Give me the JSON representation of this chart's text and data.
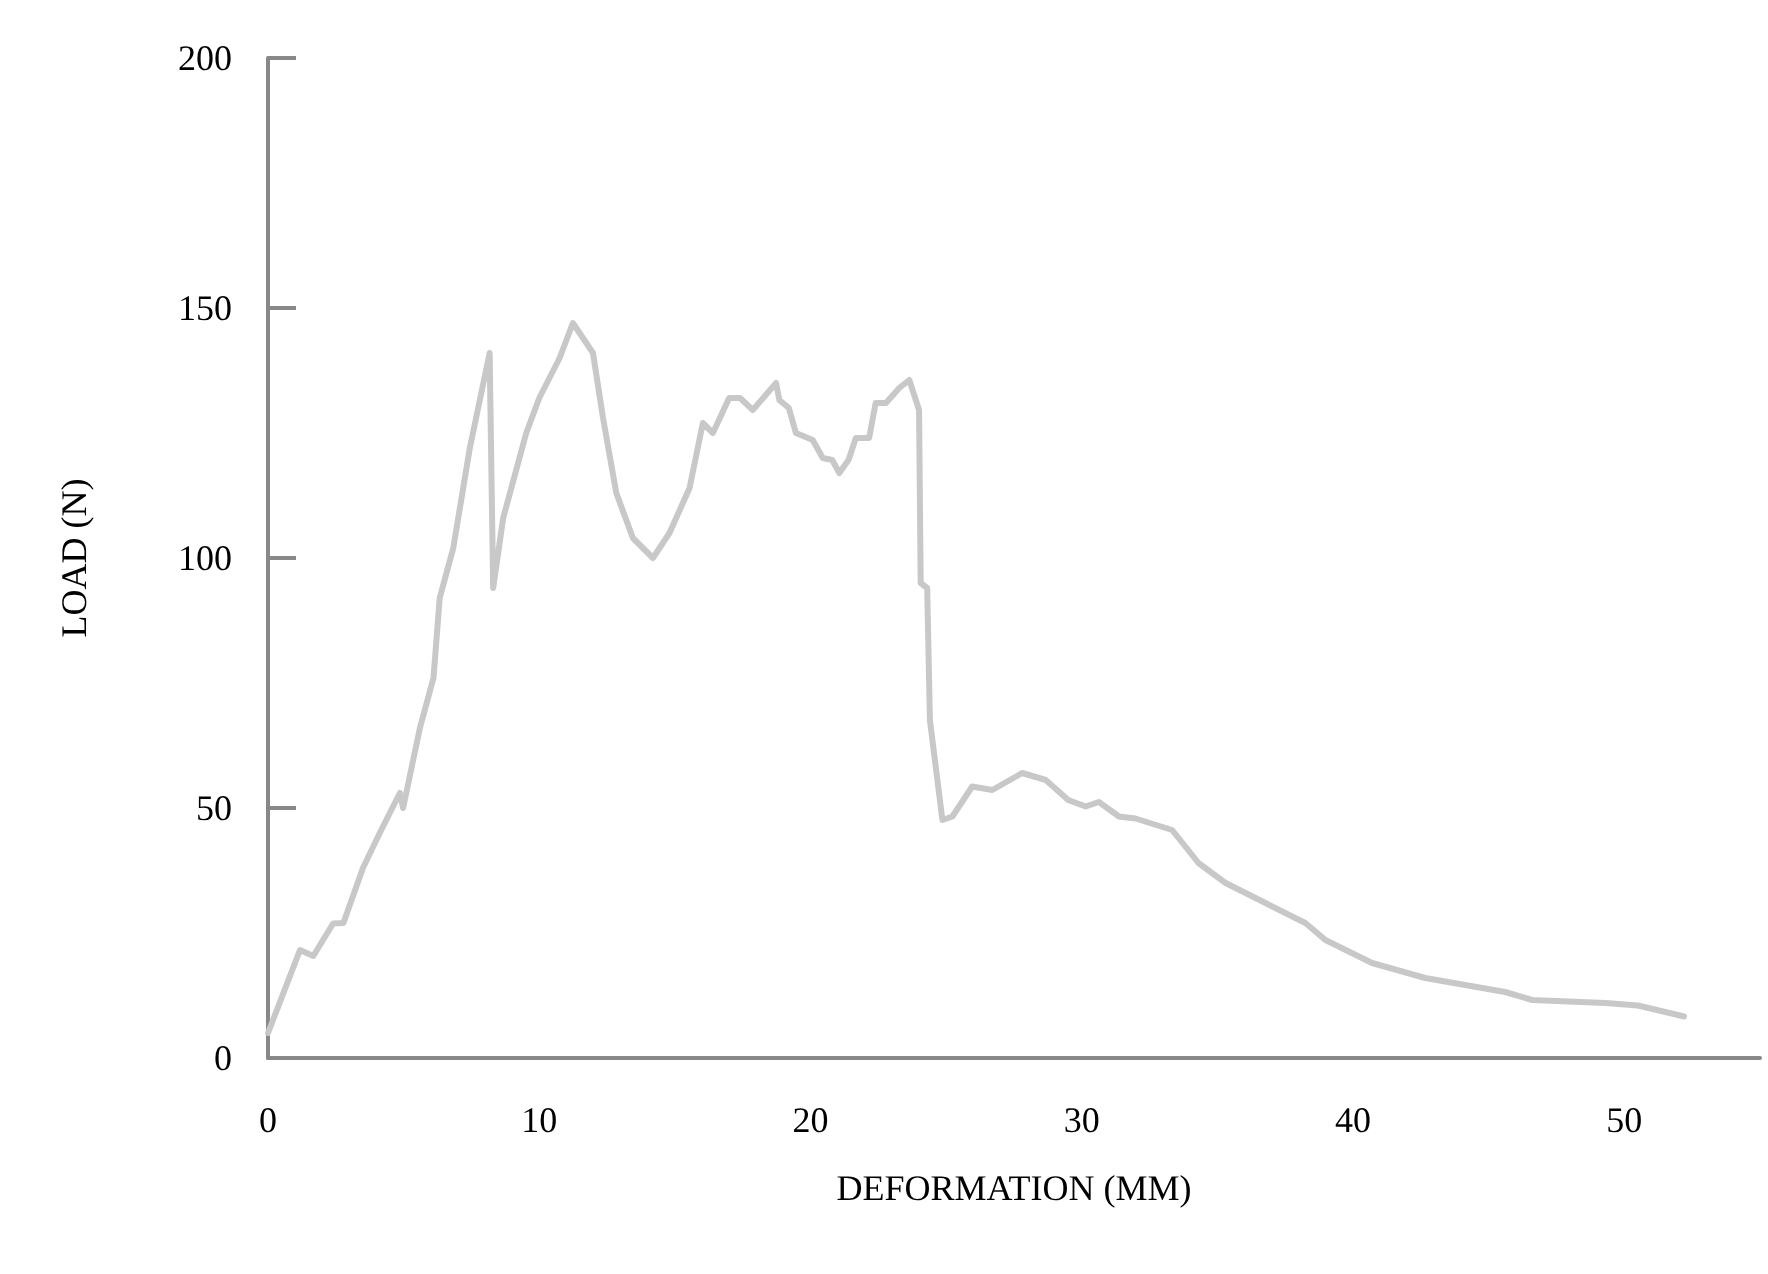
{
  "chart_data": {
    "type": "line",
    "xlabel": "DEFORMATION (MM)",
    "ylabel": "LOAD (N)",
    "xlim": [
      0,
      55
    ],
    "xticks": [
      0,
      10,
      20,
      30,
      40,
      50
    ],
    "ylim": [
      0,
      200
    ],
    "yticks": [
      0,
      50,
      100,
      150,
      200
    ],
    "grid": false,
    "marker": "none",
    "line_style": "solid",
    "series": [
      {
        "color": "#c8c8c8",
        "x": [
          0,
          1.18,
          1.67,
          2.4,
          2.78,
          3.5,
          4.12,
          4.86,
          4.98,
          5.6,
          6.1,
          6.33,
          6.83,
          7.44,
          8.17,
          8.3,
          8.67,
          9.52,
          10.0,
          10.75,
          11.24,
          11.98,
          12.35,
          12.84,
          13.45,
          14.19,
          14.8,
          15.54,
          16.03,
          16.4,
          17.0,
          17.4,
          17.87,
          18.73,
          18.85,
          19.2,
          19.46,
          20.08,
          20.45,
          20.8,
          21.06,
          21.4,
          21.67,
          22.16,
          22.4,
          22.78,
          23.27,
          23.64,
          24.0,
          24.06,
          24.3,
          24.4,
          24.86,
          25.23,
          25.96,
          26.7,
          27.8,
          28.67,
          29.5,
          30.14,
          30.63,
          31.37,
          31.98,
          33.33,
          34.3,
          35.3,
          36.77,
          38.24,
          38.98,
          40.7,
          42.66,
          45.6,
          46.6,
          49.3,
          50.5,
          52.2
        ],
        "values": [
          5,
          21.6,
          20.4,
          26.9,
          27,
          38,
          45,
          53,
          50,
          66,
          76,
          92,
          102,
          122,
          141,
          94,
          108,
          125,
          132,
          140,
          147,
          141,
          128,
          113,
          104,
          100,
          105,
          114,
          127,
          125,
          132,
          132,
          129.6,
          135,
          131.6,
          130,
          125,
          123.6,
          120,
          119.6,
          117,
          119.6,
          124,
          124,
          131,
          131,
          134,
          135.6,
          129.6,
          95,
          94,
          67.6,
          47.6,
          48.3,
          54.3,
          53.6,
          57,
          55.6,
          51.6,
          50.3,
          51.2,
          48.3,
          47.9,
          45.6,
          39,
          35,
          31,
          27,
          23.6,
          19,
          16,
          13.2,
          11.6,
          11,
          10.5,
          8.3
        ]
      }
    ]
  }
}
